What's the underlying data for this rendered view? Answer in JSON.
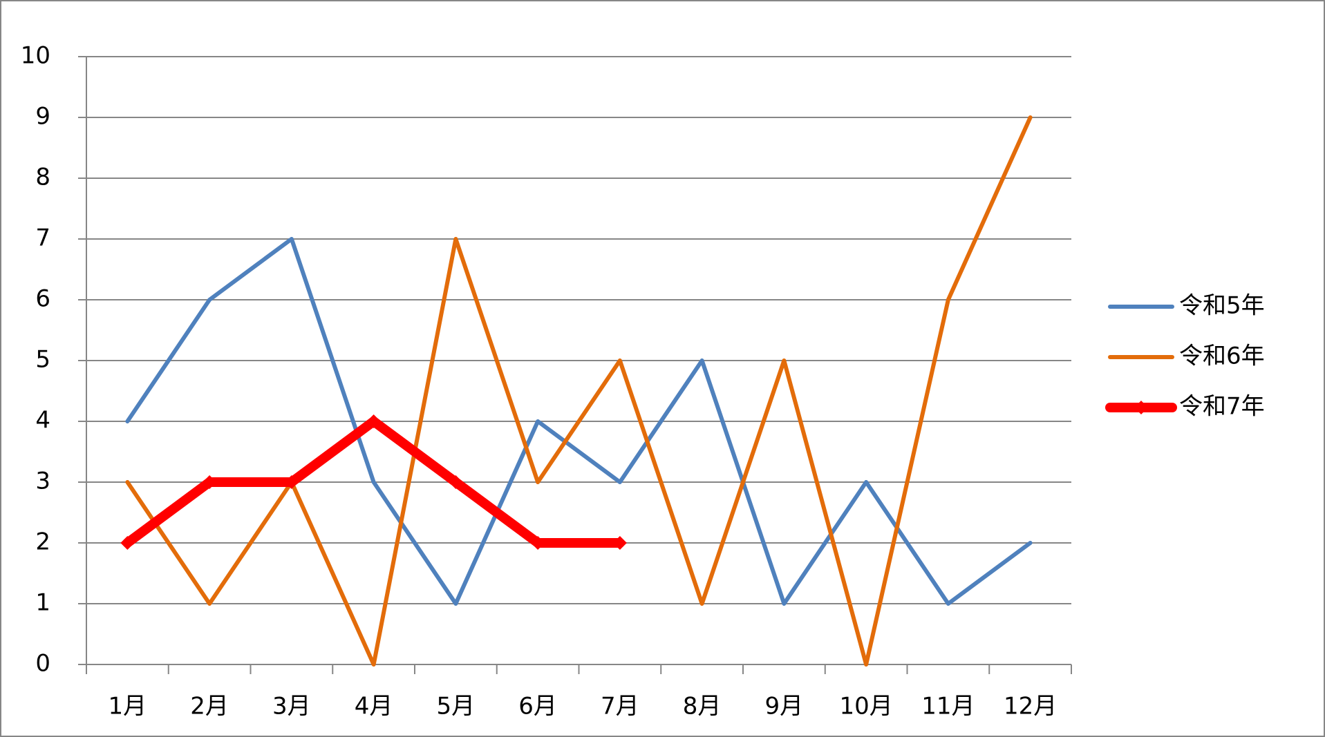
{
  "chart_data": {
    "type": "line",
    "categories": [
      "1月",
      "2月",
      "3月",
      "4月",
      "5月",
      "6月",
      "7月",
      "8月",
      "9月",
      "10月",
      "11月",
      "12月"
    ],
    "series": [
      {
        "name": "令和5年",
        "color": "#4f81bd",
        "values": [
          4,
          6,
          7,
          3,
          1,
          4,
          3,
          5,
          1,
          3,
          1,
          2
        ]
      },
      {
        "name": "令和6年",
        "color": "#e36c0a",
        "values": [
          3,
          1,
          3,
          0,
          7,
          3,
          5,
          1,
          5,
          0,
          6,
          9
        ]
      },
      {
        "name": "令和7年",
        "color": "#ff0000",
        "values": [
          2,
          3,
          3,
          4,
          3,
          2,
          2,
          null,
          null,
          null,
          null,
          null
        ]
      }
    ],
    "ylim": [
      0,
      10
    ],
    "yticks": [
      0,
      1,
      2,
      3,
      4,
      5,
      6,
      7,
      8,
      9,
      10
    ],
    "grid": true,
    "legend": "right"
  }
}
